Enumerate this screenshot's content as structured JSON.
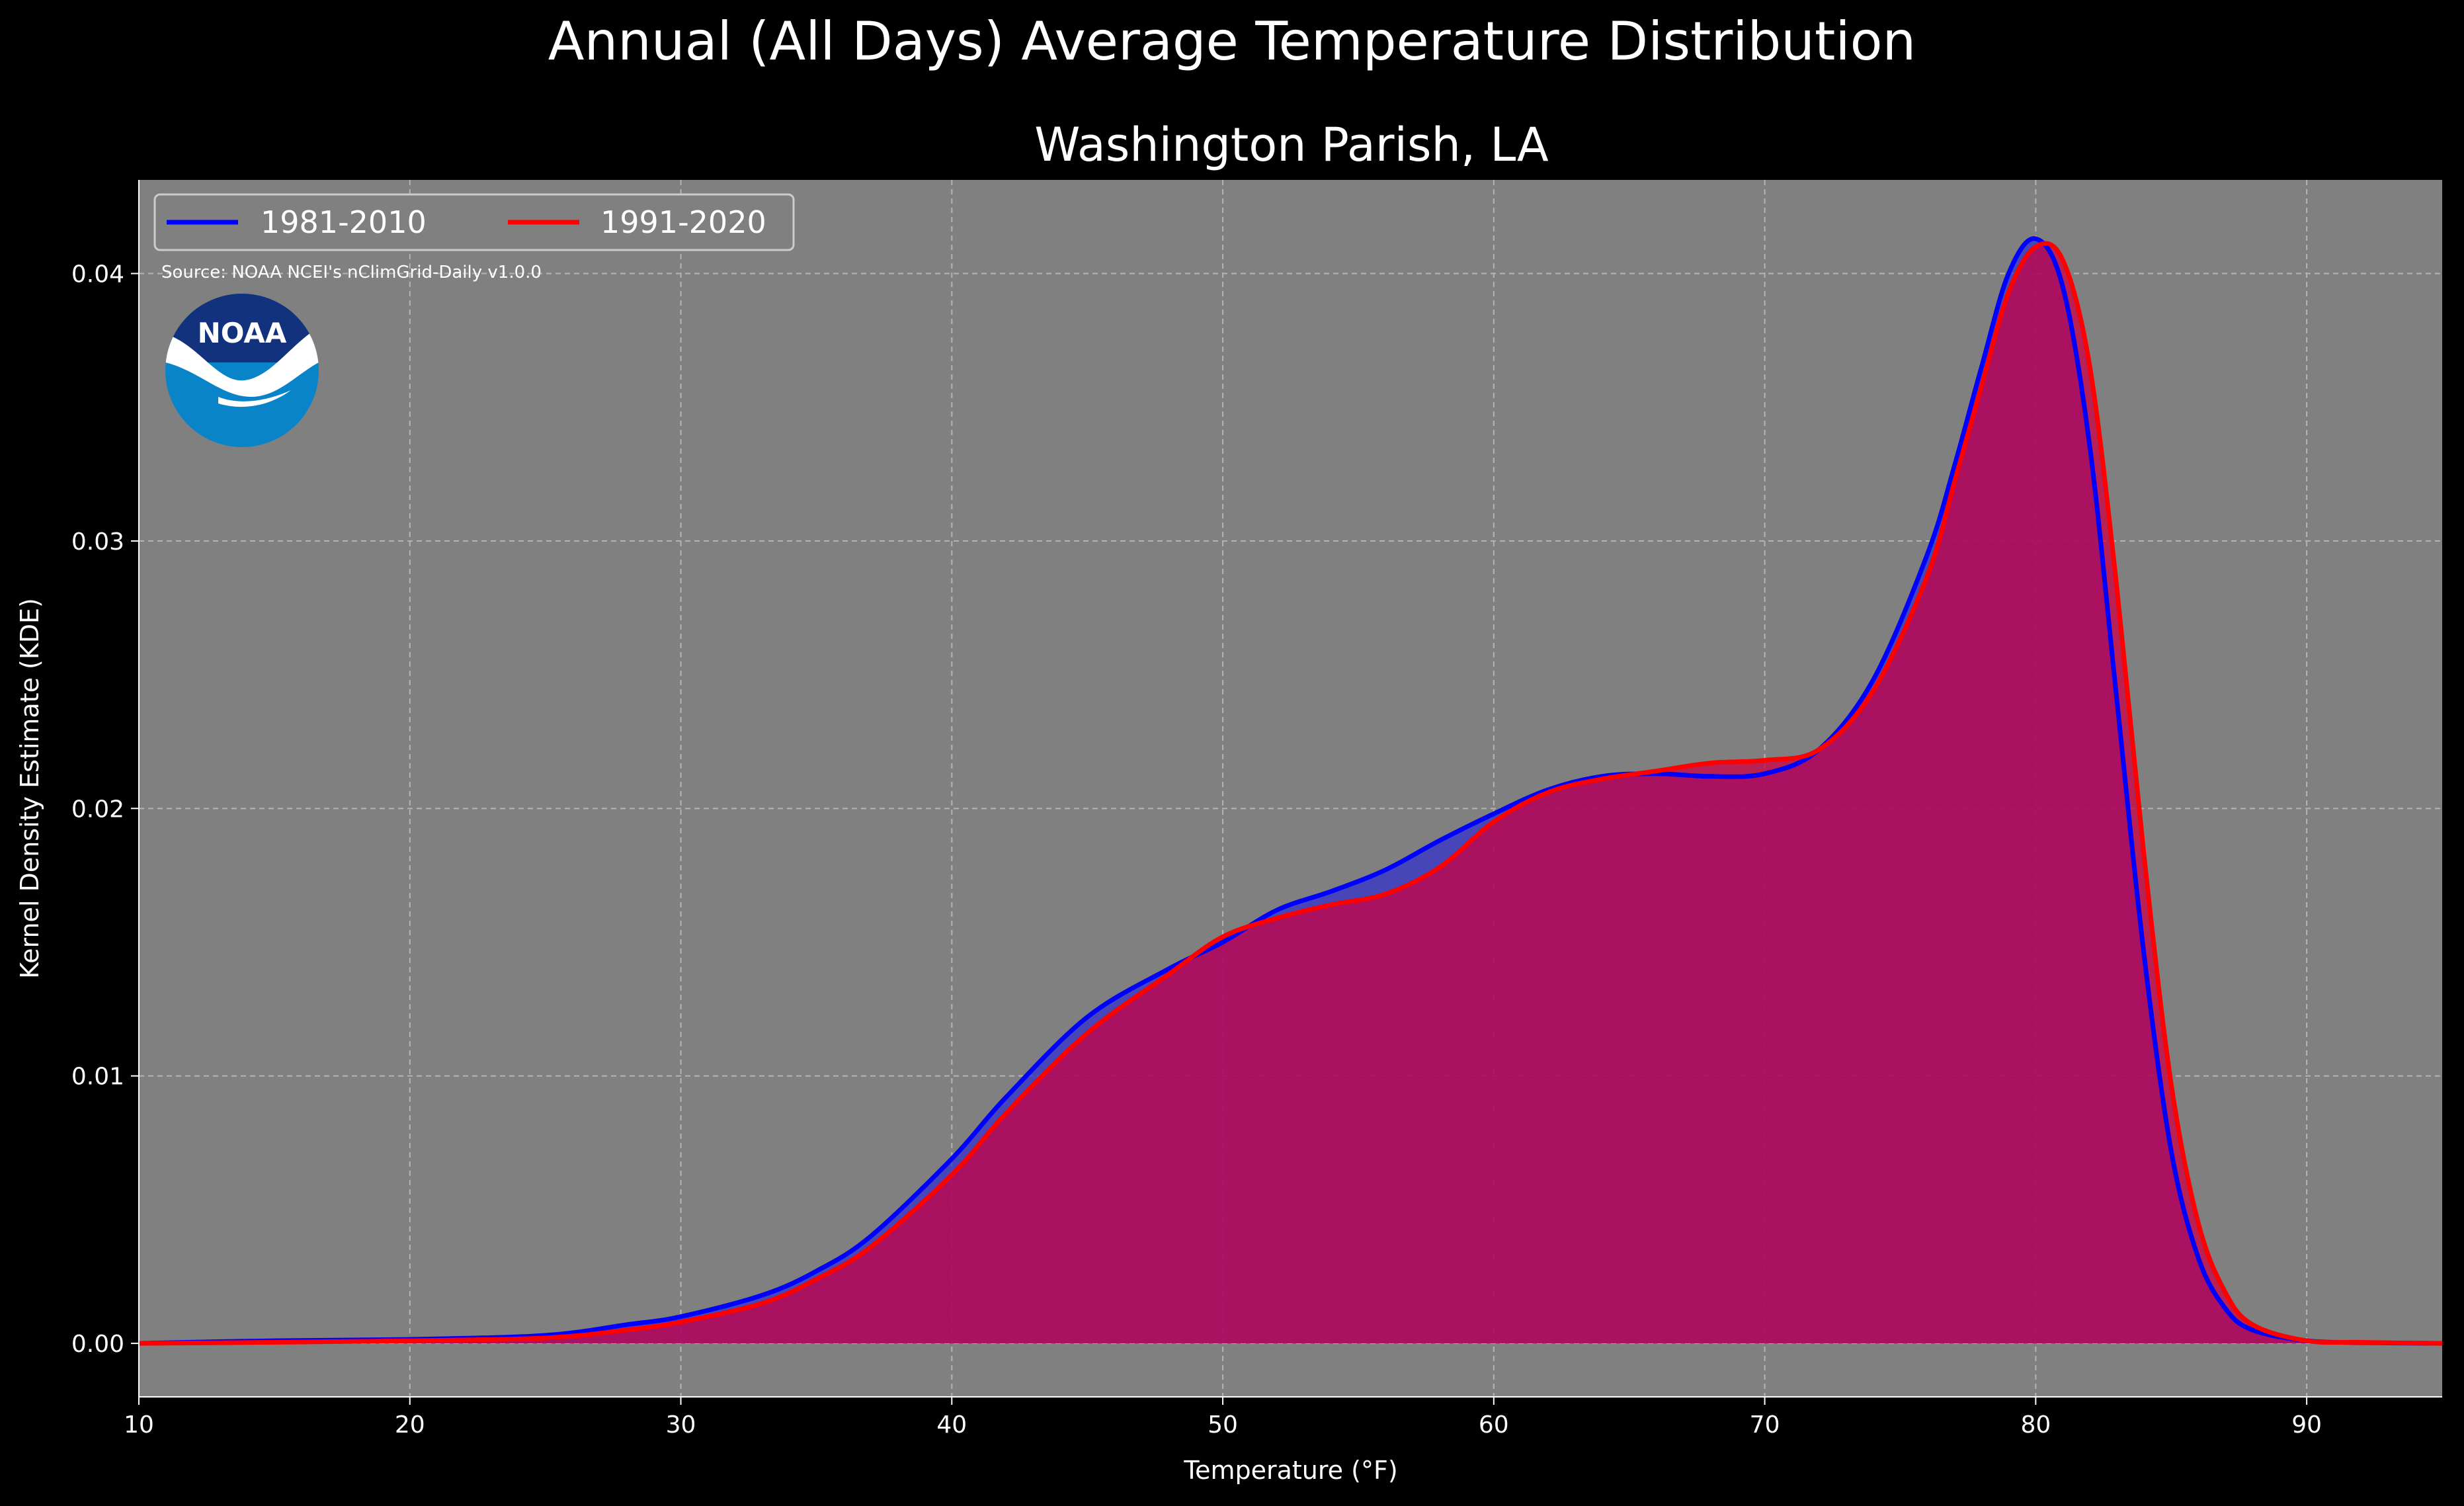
{
  "chart_data": {
    "type": "area",
    "title": "Annual (All Days) Average Temperature Distribution",
    "subtitle": "Washington Parish, LA",
    "xlabel": "Temperature (°F)",
    "ylabel": "Kernel Density Estimate (KDE)",
    "source": "Source: NOAA NCEI's nClimGrid-Daily v1.0.0",
    "logo_text": "NOAA",
    "xlim": [
      10,
      95
    ],
    "ylim": [
      -0.002,
      0.0435
    ],
    "x_ticks": [
      10,
      20,
      30,
      40,
      50,
      60,
      70,
      80,
      90
    ],
    "x_tick_labels": [
      "10",
      "20",
      "30",
      "40",
      "50",
      "60",
      "70",
      "80",
      "90"
    ],
    "y_ticks": [
      0.0,
      0.01,
      0.02,
      0.03,
      0.04
    ],
    "y_tick_labels": [
      "0.00",
      "0.01",
      "0.02",
      "0.03",
      "0.04"
    ],
    "grid": true,
    "legend_position": "top-left",
    "background_color": "#808080",
    "series": [
      {
        "name": "1981-2010",
        "line_color": "#0000ff",
        "fill_color": "#3333cc",
        "x": [
          10,
          15,
          20,
          25,
          28,
          30,
          33,
          35,
          37,
          40,
          42,
          45,
          48,
          50,
          52,
          54,
          56,
          58,
          60,
          62,
          64,
          66,
          68,
          70,
          72,
          74,
          76,
          77,
          78,
          79,
          80,
          81,
          82,
          83,
          84,
          85,
          86,
          87,
          88,
          90,
          92,
          95
        ],
        "y": [
          0.0,
          0.0001,
          0.00015,
          0.0003,
          0.0007,
          0.001,
          0.0018,
          0.0027,
          0.004,
          0.0069,
          0.0092,
          0.0122,
          0.014,
          0.015,
          0.0162,
          0.0169,
          0.0177,
          0.0188,
          0.0198,
          0.0207,
          0.0212,
          0.0213,
          0.0212,
          0.0213,
          0.0222,
          0.0248,
          0.0295,
          0.0328,
          0.0365,
          0.04,
          0.0413,
          0.0395,
          0.0335,
          0.024,
          0.0145,
          0.0072,
          0.0032,
          0.0013,
          0.0005,
          0.0001,
          3e-05,
          0.0
        ]
      },
      {
        "name": "1991-2020",
        "line_color": "#ff0000",
        "fill_color": "#cc0044",
        "x": [
          10,
          15,
          20,
          25,
          28,
          30,
          33,
          35,
          37,
          40,
          42,
          45,
          48,
          50,
          52,
          54,
          56,
          58,
          60,
          62,
          64,
          66,
          68,
          70,
          72,
          74,
          76,
          77,
          78,
          79,
          80,
          81,
          82,
          83,
          84,
          85,
          86,
          87,
          88,
          90,
          92,
          95
        ],
        "y": [
          0.0,
          4e-05,
          0.0001,
          0.0002,
          0.0005,
          0.0008,
          0.0015,
          0.0024,
          0.0036,
          0.0063,
          0.0086,
          0.0116,
          0.0138,
          0.0152,
          0.0159,
          0.0164,
          0.0168,
          0.0178,
          0.0195,
          0.0206,
          0.0211,
          0.0214,
          0.0217,
          0.0218,
          0.0222,
          0.0244,
          0.0287,
          0.0322,
          0.0358,
          0.0393,
          0.041,
          0.0405,
          0.0365,
          0.0282,
          0.0182,
          0.0097,
          0.0045,
          0.0019,
          0.0007,
          0.0001,
          4e-05,
          0.0
        ]
      }
    ]
  }
}
